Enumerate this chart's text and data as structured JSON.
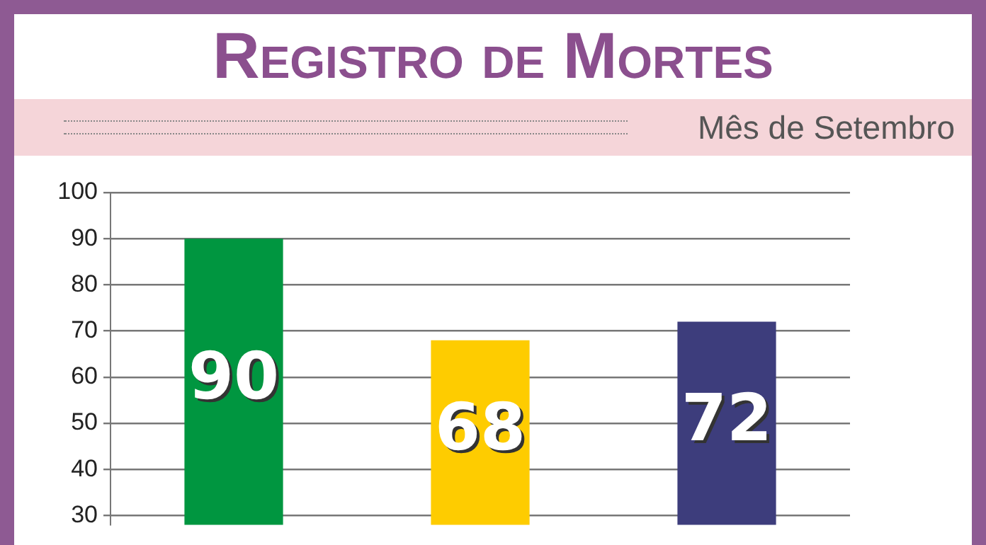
{
  "chart_data": {
    "type": "bar",
    "title": "Registro de Mortes",
    "subtitle": "Mês de Setembro",
    "categories": [
      null,
      null,
      null
    ],
    "values": [
      90,
      68,
      72
    ],
    "colors": [
      "#009640",
      "#fecc00",
      "#3d3d7c"
    ],
    "ylim": [
      28,
      100
    ],
    "yticks": [
      30,
      40,
      50,
      60,
      70,
      80,
      90,
      100
    ],
    "grid": "y",
    "data_labels": true
  }
}
